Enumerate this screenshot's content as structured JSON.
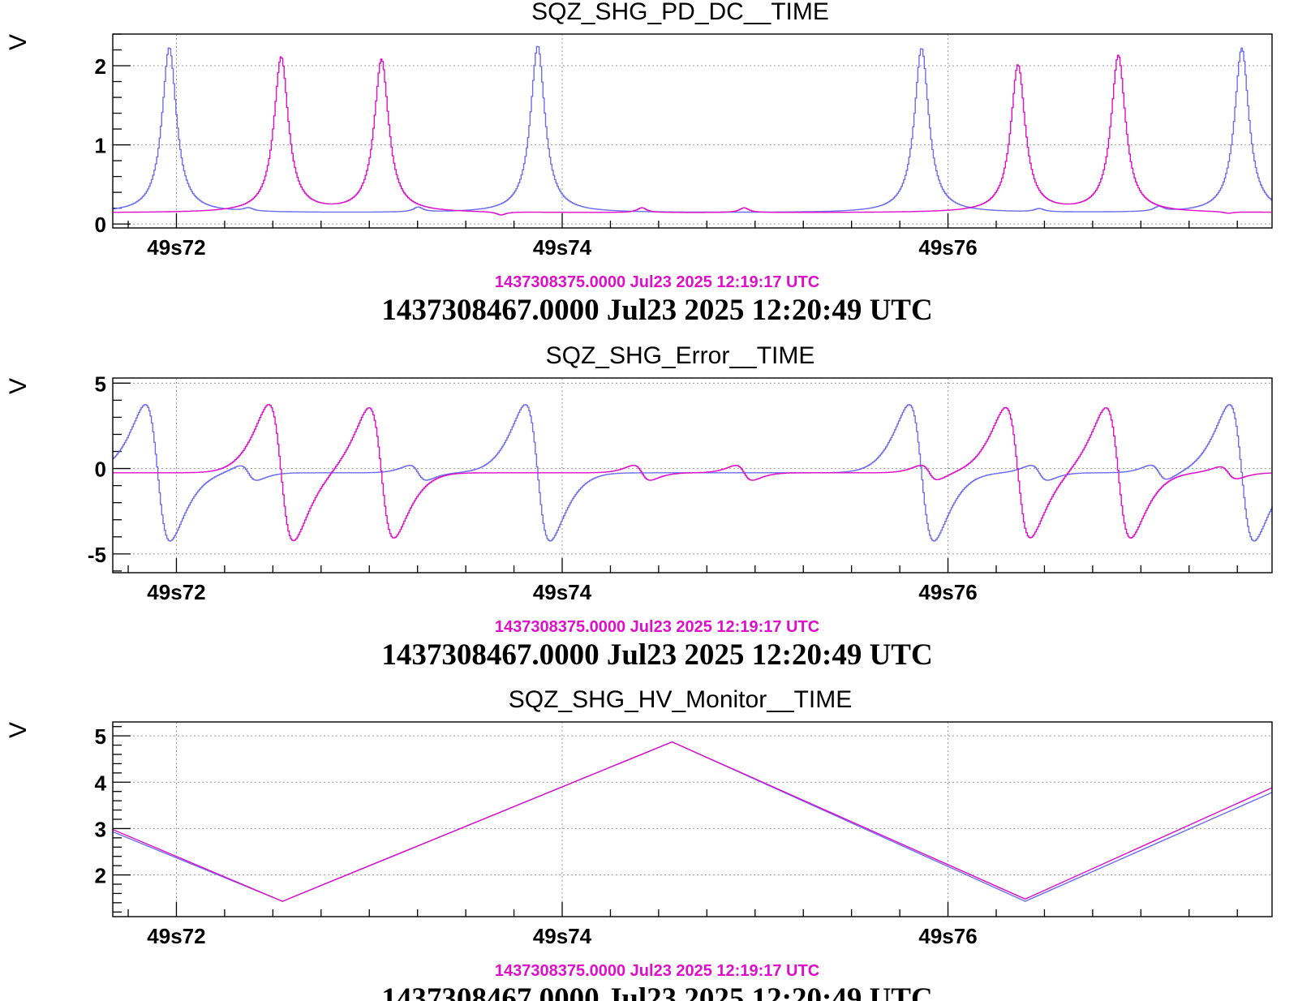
{
  "colors": {
    "series_a": "#6d6dee",
    "series_b": "#dd0fc9",
    "timestamp_ref": "#dd0fc9"
  },
  "timestamps": {
    "reference": "1437308375.0000 Jul23 2025 12:19:17 UTC",
    "current": "1437308467.0000 Jul23 2025 12:20:49 UTC"
  },
  "chart_data": [
    {
      "type": "line",
      "title": "SQZ_SHG_PD_DC__TIME",
      "ylabel": "V",
      "xlim": [
        49.7167,
        49.7768
      ],
      "ylim": [
        -0.05,
        2.4
      ],
      "x_ticks": [
        49.72,
        49.74,
        49.76
      ],
      "x_tick_labels": [
        "49s72",
        "49s74",
        "49s76"
      ],
      "y_ticks": [
        0,
        1,
        2
      ],
      "y_tick_labels": [
        "0",
        "1",
        "2"
      ],
      "series": [
        {
          "color": "#6d6dee",
          "baseline": 0.14,
          "peaks": [
            {
              "x": 49.7196,
              "h": 2.23,
              "w": 0.00045
            },
            {
              "x": 49.7237,
              "h": 0.18,
              "w": 0.0003
            },
            {
              "x": 49.7325,
              "h": 0.2,
              "w": 0.0003
            },
            {
              "x": 49.7387,
              "h": 2.25,
              "w": 0.00045
            },
            {
              "x": 49.7586,
              "h": 2.22,
              "w": 0.00045
            },
            {
              "x": 49.7647,
              "h": 0.18,
              "w": 0.0003
            },
            {
              "x": 49.7709,
              "h": 0.2,
              "w": 0.0003
            },
            {
              "x": 49.7752,
              "h": 2.22,
              "w": 0.00045
            }
          ]
        },
        {
          "color": "#dd0fc9",
          "baseline": 0.14,
          "peaks": [
            {
              "x": 49.7254,
              "h": 2.1,
              "w": 0.00045
            },
            {
              "x": 49.7306,
              "h": 2.07,
              "w": 0.00045
            },
            {
              "x": 49.7368,
              "h": 0.1,
              "w": 0.0003
            },
            {
              "x": 49.7441,
              "h": 0.2,
              "w": 0.0003
            },
            {
              "x": 49.7494,
              "h": 0.2,
              "w": 0.0003
            },
            {
              "x": 49.759,
              "h": 0.14,
              "w": 0.0003
            },
            {
              "x": 49.7636,
              "h": 2.0,
              "w": 0.00045
            },
            {
              "x": 49.7688,
              "h": 2.12,
              "w": 0.00045
            },
            {
              "x": 49.7745,
              "h": 0.12,
              "w": 0.0003
            }
          ]
        }
      ]
    },
    {
      "type": "line",
      "title": "SQZ_SHG_Error__TIME",
      "ylabel": "V",
      "xlim": [
        49.7167,
        49.7768
      ],
      "ylim": [
        -6.1,
        5.3
      ],
      "x_ticks": [
        49.72,
        49.74,
        49.76
      ],
      "x_tick_labels": [
        "49s72",
        "49s74",
        "49s76"
      ],
      "y_ticks": [
        -5,
        0,
        5
      ],
      "y_tick_labels": [
        "-5",
        "0",
        "5"
      ],
      "series": [
        {
          "color": "#6d6dee",
          "baseline": -0.25,
          "peaks": [
            {
              "x": 49.719,
              "h": 4.6,
              "w": 0.0006
            },
            {
              "x": 49.7237,
              "h": 0.5,
              "w": 0.0004
            },
            {
              "x": 49.7325,
              "h": 0.5,
              "w": 0.0004
            },
            {
              "x": 49.7387,
              "h": 4.6,
              "w": 0.0006
            },
            {
              "x": 49.7586,
              "h": 4.6,
              "w": 0.0006
            },
            {
              "x": 49.7647,
              "h": 0.5,
              "w": 0.0004
            },
            {
              "x": 49.7709,
              "h": 0.5,
              "w": 0.0004
            },
            {
              "x": 49.7752,
              "h": 4.6,
              "w": 0.0006
            }
          ]
        },
        {
          "color": "#dd0fc9",
          "baseline": -0.25,
          "peaks": [
            {
              "x": 49.7254,
              "h": 4.6,
              "w": 0.0006
            },
            {
              "x": 49.7306,
              "h": 4.4,
              "w": 0.0006
            },
            {
              "x": 49.7441,
              "h": 0.5,
              "w": 0.0004
            },
            {
              "x": 49.7494,
              "h": 0.5,
              "w": 0.0004
            },
            {
              "x": 49.759,
              "h": 0.5,
              "w": 0.0004
            },
            {
              "x": 49.7636,
              "h": 4.4,
              "w": 0.0006
            },
            {
              "x": 49.7688,
              "h": 4.4,
              "w": 0.0006
            },
            {
              "x": 49.7745,
              "h": 0.4,
              "w": 0.0004
            }
          ]
        }
      ]
    },
    {
      "type": "line",
      "title": "SQZ_SHG_HV_Monitor__TIME",
      "ylabel": "V",
      "xlim": [
        49.7167,
        49.7768
      ],
      "ylim": [
        1.1,
        5.3
      ],
      "x_ticks": [
        49.72,
        49.74,
        49.76
      ],
      "x_tick_labels": [
        "49s72",
        "49s74",
        "49s76"
      ],
      "y_ticks": [
        2,
        3,
        4,
        5
      ],
      "y_tick_labels": [
        "2",
        "3",
        "4",
        "5"
      ],
      "series": [
        {
          "color": "#6d6dee",
          "x": [
            49.7167,
            49.7255,
            49.7457,
            49.764,
            49.7768
          ],
          "y": [
            2.93,
            1.43,
            4.87,
            1.43,
            3.78
          ]
        },
        {
          "color": "#dd0fc9",
          "x": [
            49.7167,
            49.7255,
            49.7457,
            49.764,
            49.7768
          ],
          "y": [
            2.98,
            1.43,
            4.87,
            1.48,
            3.88
          ]
        }
      ]
    }
  ]
}
